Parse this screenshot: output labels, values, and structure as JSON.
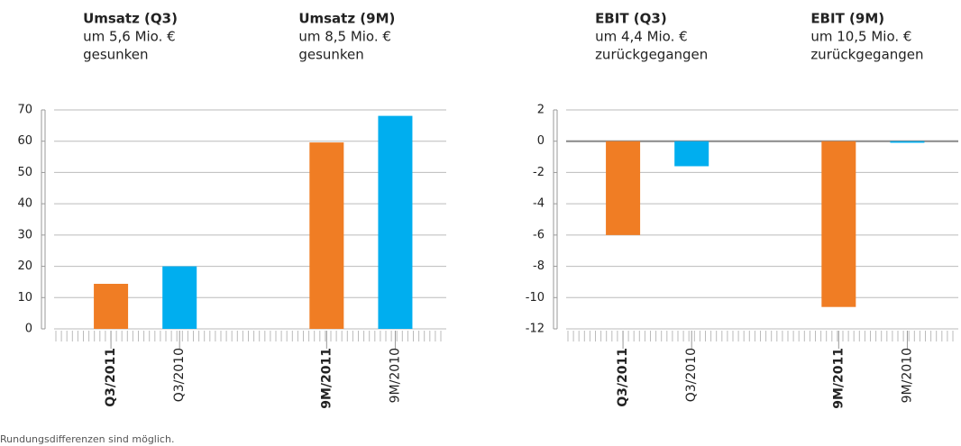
{
  "chart_data": [
    {
      "type": "bar",
      "annotations": [
        {
          "title": "Umsatz (Q3)",
          "lines": [
            "um 5,6 Mio. €",
            "gesunken"
          ]
        },
        {
          "title": "Umsatz (9M)",
          "lines": [
            "um 8,5 Mio. €",
            "gesunken"
          ]
        }
      ],
      "categories": [
        "Q3/2011",
        "Q3/2010",
        "9M/2011",
        "9M/2010"
      ],
      "values": [
        14.4,
        20.0,
        59.6,
        68.1
      ],
      "colors": [
        "#f07d24",
        "#00aeef",
        "#f07d24",
        "#00aeef"
      ],
      "ylim": [
        0,
        70
      ],
      "yticks": [
        0,
        10,
        20,
        30,
        40,
        50,
        60,
        70
      ],
      "grid": true
    },
    {
      "type": "bar",
      "annotations": [
        {
          "title": "EBIT (Q3)",
          "lines": [
            "um 4,4 Mio. €",
            "zurückgegangen"
          ]
        },
        {
          "title": "EBIT (9M)",
          "lines": [
            "um 10,5 Mio. €",
            "zurückgegangen"
          ]
        }
      ],
      "categories": [
        "Q3/2011",
        "Q3/2010",
        "9M/2011",
        "9M/2010"
      ],
      "values": [
        -6.0,
        -1.6,
        -10.6,
        -0.1
      ],
      "colors": [
        "#f07d24",
        "#00aeef",
        "#f07d24",
        "#00aeef"
      ],
      "ylim": [
        -12,
        2
      ],
      "yticks": [
        -12,
        -10,
        -8,
        -6,
        -4,
        -2,
        0,
        2
      ],
      "grid": true
    }
  ],
  "footnote": "Rundungsdifferenzen sind möglich."
}
